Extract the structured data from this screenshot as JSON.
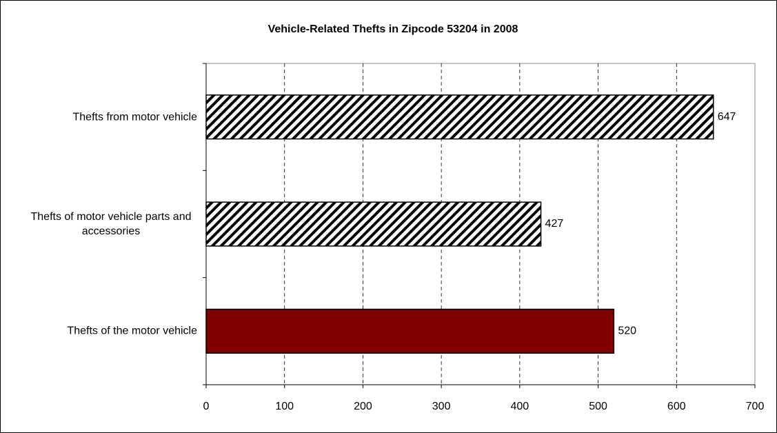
{
  "chart_data": {
    "type": "bar",
    "orientation": "horizontal",
    "title": "Vehicle-Related Thefts in Zipcode 53204 in 2008",
    "categories": [
      "Thefts from motor vehicle",
      "Thefts of motor vehicle parts and accessories",
      "Thefts of the motor vehicle"
    ],
    "values": [
      647,
      427,
      520
    ],
    "colors": [
      "#ffffff",
      "#ffffff",
      "#800000"
    ],
    "hatch": [
      true,
      true,
      false
    ],
    "xlim": [
      0,
      700
    ],
    "xticks": [
      0,
      100,
      200,
      300,
      400,
      500,
      600,
      700
    ],
    "grid": true
  }
}
